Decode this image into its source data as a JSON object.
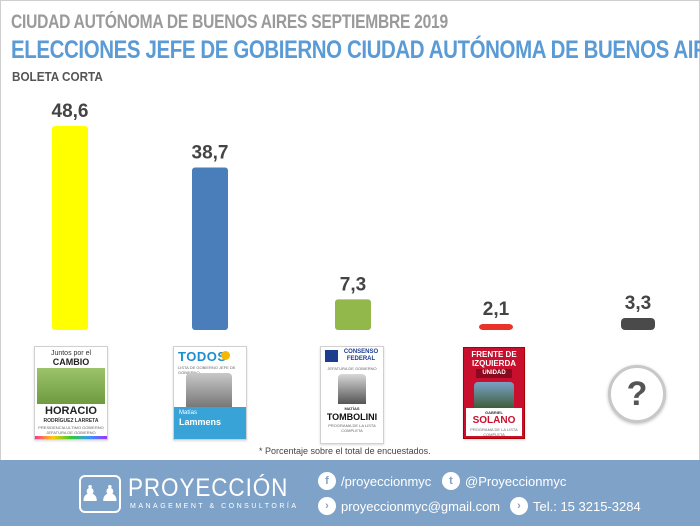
{
  "header": {
    "supertitle": "CIUDAD AUTÓNOMA DE BUENOS AIRES SEPTIEMBRE 2019",
    "title": "ELECCIONES JEFE DE GOBIERNO CIUDAD AUTÓNOMA DE BUENOS AIRES",
    "subtitle": "BOLETA CORTA"
  },
  "chart_data": {
    "type": "bar",
    "categories": [
      "Juntos por el Cambio",
      "Frente de Todos",
      "Consenso Federal",
      "Frente de Izquierda Unidad",
      "Otros"
    ],
    "values": [
      48.6,
      38.7,
      7.3,
      2.1,
      3.3
    ],
    "value_labels": [
      "48,6",
      "38,7",
      "7,3",
      "2,1",
      "3,3"
    ],
    "colors": [
      "#ffff00",
      "#4a7ebb",
      "#92b84c",
      "#e8322a",
      "#4a4a4a"
    ],
    "ylim": [
      0,
      50
    ],
    "grid": false,
    "legend": "none"
  },
  "ballots": [
    {
      "header_line1": "Juntos por el",
      "header_line2": "CAMBIO",
      "name_line1": "HORACIO",
      "name_line2": "RODRÍGUEZ LARRETA",
      "small": "PRESIDENCIA ULTIMO GOBIERNO JEFATURA DE GOBIERNO"
    },
    {
      "header": "TODOS",
      "header_small": "LISTA DE GOBIERNO JEFE DE GOBIERNO",
      "name_line1": "Matías",
      "name_line2": "Lammens"
    },
    {
      "header_line1": "CONSENSO",
      "header_line2": "FEDERAL",
      "header_small": "JEFATURA DE GOBIERNO",
      "name_line1": "MATÍAS",
      "name_line2": "TOMBOLINI",
      "small": "PROGRAMA DE LA LISTA COMPLETA"
    },
    {
      "header_line1": "FRENTE DE",
      "header_line2": "IZQUIERDA",
      "header_line3": "UNIDAD",
      "name_line1": "GABRIEL",
      "name_line2": "SOLANO",
      "small": "PROGRAMA DE LA LISTA COMPLETA"
    }
  ],
  "others_symbol": "?",
  "footnote": "* Porcentaje sobre el total de encuestados.",
  "footer": {
    "brand": "PROYECCIÓN",
    "tagline": "MANAGEMENT & CONSULTORÍA",
    "facebook": "/proyeccionmyc",
    "twitter": "@Proyeccionmyc",
    "email": "proyeccionmyc@gmail.com",
    "phone": "Tel.: 15 3215-3284"
  }
}
